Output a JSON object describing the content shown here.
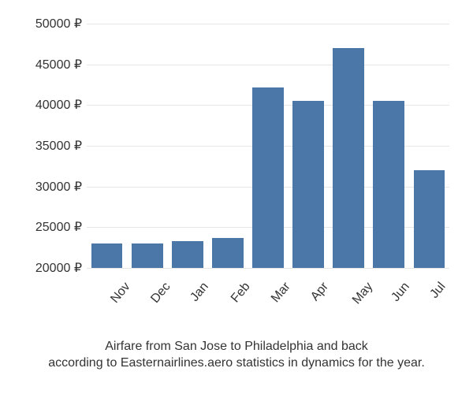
{
  "chart": {
    "type": "bar",
    "categories": [
      "Nov",
      "Dec",
      "Jan",
      "Feb",
      "Mar",
      "Apr",
      "May",
      "Jun",
      "Jul"
    ],
    "values": [
      23000,
      23000,
      23300,
      23700,
      42200,
      40500,
      47000,
      40500,
      32000
    ],
    "bar_color": "#4a76a8",
    "ymin": 20000,
    "ymax": 50000,
    "ytick_step": 5000,
    "currency_symbol": "₽",
    "grid_color": "#e6e6e6",
    "background_color": "#ffffff",
    "tick_fontsize": 16,
    "tick_color": "#333333",
    "bar_width_ratio": 0.78,
    "xlabel_rotation": -50
  },
  "caption": {
    "line1": "Airfare from San Jose to Philadelphia and back",
    "line2": "according to Easternairlines.aero statistics in dynamics for the year.",
    "fontsize": 16,
    "color": "#333333"
  }
}
